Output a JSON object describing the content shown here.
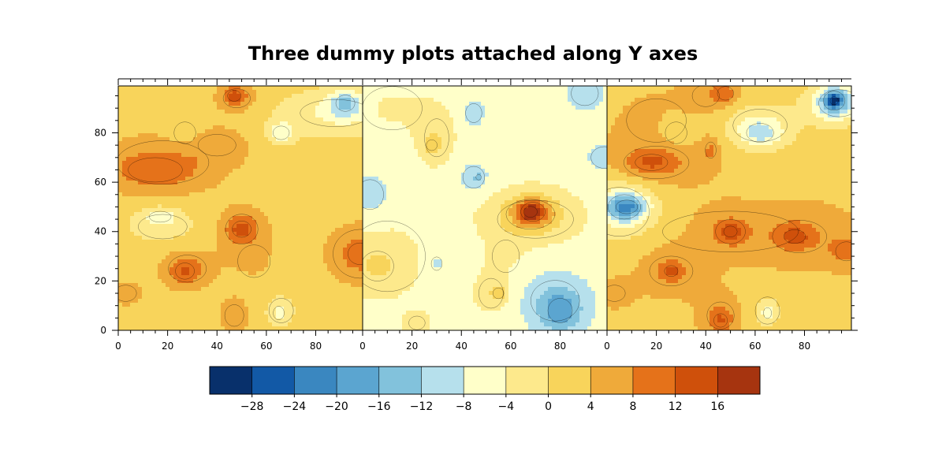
{
  "title": "Three dummy plots attached along Y axes",
  "chart_data": {
    "type": "heatmap",
    "title": "Three dummy plots attached along Y axes",
    "panels": [
      {
        "name": "panel-1",
        "xlim": [
          0,
          99
        ],
        "ylim": [
          0,
          99
        ],
        "x_ticks": [
          "0",
          "20",
          "40",
          "60",
          "80"
        ],
        "y_ticks": [
          "0",
          "20",
          "40",
          "60",
          "80"
        ],
        "background_value": 2,
        "blobs": [
          {
            "x": 18,
            "y": 68,
            "rx": 34,
            "ry": 16,
            "v": 8
          },
          {
            "x": 15,
            "y": 65,
            "rx": 20,
            "ry": 9,
            "v": 14
          },
          {
            "x": 40,
            "y": 75,
            "rx": 14,
            "ry": 8,
            "v": 9
          },
          {
            "x": 27,
            "y": 80,
            "rx": 8,
            "ry": 8,
            "v": -3
          },
          {
            "x": 48,
            "y": 94,
            "rx": 10,
            "ry": 7,
            "v": 11
          },
          {
            "x": 47,
            "y": 95,
            "rx": 5,
            "ry": 4,
            "v": 16
          },
          {
            "x": 88,
            "y": 88,
            "rx": 26,
            "ry": 10,
            "v": -10
          },
          {
            "x": 92,
            "y": 92,
            "rx": 7,
            "ry": 6,
            "v": -18
          },
          {
            "x": 66,
            "y": 80,
            "rx": 6,
            "ry": 5,
            "v": -13
          },
          {
            "x": 18,
            "y": 42,
            "rx": 18,
            "ry": 9,
            "v": -5
          },
          {
            "x": 17,
            "y": 46,
            "rx": 8,
            "ry": 4,
            "v": -10
          },
          {
            "x": 28,
            "y": 25,
            "rx": 14,
            "ry": 10,
            "v": 10
          },
          {
            "x": 27,
            "y": 24,
            "rx": 7,
            "ry": 6,
            "v": 14
          },
          {
            "x": 50,
            "y": 41,
            "rx": 12,
            "ry": 11,
            "v": 10
          },
          {
            "x": 50,
            "y": 41,
            "rx": 7,
            "ry": 6,
            "v": 15
          },
          {
            "x": 47,
            "y": 6,
            "rx": 7,
            "ry": 8,
            "v": 11
          },
          {
            "x": 66,
            "y": 8,
            "rx": 9,
            "ry": 9,
            "v": -3
          },
          {
            "x": 65,
            "y": 7,
            "rx": 4,
            "ry": 5,
            "v": -6
          },
          {
            "x": 98,
            "y": 31,
            "rx": 20,
            "ry": 18,
            "v": 8
          },
          {
            "x": 98,
            "y": 31,
            "rx": 9,
            "ry": 8,
            "v": 14
          },
          {
            "x": 3,
            "y": 15,
            "rx": 8,
            "ry": 6,
            "v": 10
          },
          {
            "x": 55,
            "y": 28,
            "rx": 12,
            "ry": 12,
            "v": 6
          }
        ]
      },
      {
        "name": "panel-2",
        "xlim": [
          0,
          99
        ],
        "ylim": [
          0,
          99
        ],
        "x_ticks": [
          "0",
          "20",
          "40",
          "60",
          "80"
        ],
        "y_ticks": [],
        "background_value": -6,
        "blobs": [
          {
            "x": 10,
            "y": 30,
            "rx": 28,
            "ry": 26,
            "v": -2
          },
          {
            "x": 12,
            "y": 90,
            "rx": 22,
            "ry": 16,
            "v": -2
          },
          {
            "x": 70,
            "y": 45,
            "rx": 28,
            "ry": 14,
            "v": -2
          },
          {
            "x": 58,
            "y": 30,
            "rx": 10,
            "ry": 12,
            "v": -2
          },
          {
            "x": 30,
            "y": 78,
            "rx": 9,
            "ry": 14,
            "v": 2
          },
          {
            "x": 28,
            "y": 75,
            "rx": 4,
            "ry": 4,
            "v": 4
          },
          {
            "x": 52,
            "y": 15,
            "rx": 9,
            "ry": 11,
            "v": 1
          },
          {
            "x": 55,
            "y": 15,
            "rx": 4,
            "ry": 4,
            "v": 4
          },
          {
            "x": 6,
            "y": 26,
            "rx": 12,
            "ry": 11,
            "v": 3
          },
          {
            "x": 22,
            "y": 3,
            "rx": 6,
            "ry": 5,
            "v": 3
          },
          {
            "x": 68,
            "y": 47,
            "rx": 18,
            "ry": 11,
            "v": 6
          },
          {
            "x": 69,
            "y": 48,
            "rx": 9,
            "ry": 7,
            "v": 11
          },
          {
            "x": 68,
            "y": 48,
            "rx": 5,
            "ry": 4,
            "v": 15
          },
          {
            "x": 78,
            "y": 12,
            "rx": 18,
            "ry": 15,
            "v": -14
          },
          {
            "x": 80,
            "y": 8,
            "rx": 9,
            "ry": 9,
            "v": -24
          },
          {
            "x": 3,
            "y": 55,
            "rx": 10,
            "ry": 11,
            "v": -14
          },
          {
            "x": 45,
            "y": 88,
            "rx": 6,
            "ry": 7,
            "v": -13
          },
          {
            "x": 45,
            "y": 62,
            "rx": 8,
            "ry": 8,
            "v": -13
          },
          {
            "x": 47,
            "y": 62,
            "rx": 2,
            "ry": 2,
            "v": -18
          },
          {
            "x": 90,
            "y": 96,
            "rx": 10,
            "ry": 9,
            "v": -13
          },
          {
            "x": 98,
            "y": 70,
            "rx": 10,
            "ry": 8,
            "v": -12
          },
          {
            "x": 30,
            "y": 27,
            "rx": 4,
            "ry": 5,
            "v": -13
          }
        ]
      },
      {
        "name": "panel-3",
        "xlim": [
          0,
          99
        ],
        "ylim": [
          0,
          99
        ],
        "x_ticks": [
          "0",
          "20",
          "40",
          "60",
          "80"
        ],
        "y_ticks": [],
        "background_value": 3,
        "blobs": [
          {
            "x": 20,
            "y": 85,
            "rx": 22,
            "ry": 16,
            "v": 6
          },
          {
            "x": 20,
            "y": 68,
            "rx": 24,
            "ry": 12,
            "v": 10
          },
          {
            "x": 18,
            "y": 68,
            "rx": 12,
            "ry": 6,
            "v": 15
          },
          {
            "x": 40,
            "y": 95,
            "rx": 10,
            "ry": 8,
            "v": 10
          },
          {
            "x": 48,
            "y": 96,
            "rx": 6,
            "ry": 5,
            "v": 15
          },
          {
            "x": 42,
            "y": 73,
            "rx": 4,
            "ry": 6,
            "v": 12
          },
          {
            "x": 28,
            "y": 80,
            "rx": 8,
            "ry": 8,
            "v": -3
          },
          {
            "x": 62,
            "y": 83,
            "rx": 20,
            "ry": 12,
            "v": -6
          },
          {
            "x": 62,
            "y": 80,
            "rx": 10,
            "ry": 7,
            "v": -13
          },
          {
            "x": 94,
            "y": 92,
            "rx": 15,
            "ry": 10,
            "v": -12
          },
          {
            "x": 92,
            "y": 93,
            "rx": 8,
            "ry": 7,
            "v": -20
          },
          {
            "x": 92,
            "y": 93,
            "rx": 3,
            "ry": 3,
            "v": -27
          },
          {
            "x": 5,
            "y": 48,
            "rx": 22,
            "ry": 18,
            "v": -6
          },
          {
            "x": 7,
            "y": 50,
            "rx": 12,
            "ry": 9,
            "v": -14
          },
          {
            "x": 8,
            "y": 50,
            "rx": 8,
            "ry": 5,
            "v": -19
          },
          {
            "x": 50,
            "y": 40,
            "rx": 50,
            "ry": 15,
            "v": 6
          },
          {
            "x": 50,
            "y": 40,
            "rx": 11,
            "ry": 9,
            "v": 11
          },
          {
            "x": 50,
            "y": 40,
            "rx": 5,
            "ry": 4,
            "v": 15
          },
          {
            "x": 78,
            "y": 38,
            "rx": 20,
            "ry": 12,
            "v": 10
          },
          {
            "x": 76,
            "y": 38,
            "rx": 8,
            "ry": 5,
            "v": 15
          },
          {
            "x": 97,
            "y": 32,
            "rx": 8,
            "ry": 7,
            "v": 14
          },
          {
            "x": 26,
            "y": 24,
            "rx": 16,
            "ry": 11,
            "v": 10
          },
          {
            "x": 26,
            "y": 24,
            "rx": 5,
            "ry": 4,
            "v": 16
          },
          {
            "x": 46,
            "y": 6,
            "rx": 10,
            "ry": 10,
            "v": 10
          },
          {
            "x": 46,
            "y": 4,
            "rx": 5,
            "ry": 5,
            "v": 14
          },
          {
            "x": 3,
            "y": 15,
            "rx": 8,
            "ry": 6,
            "v": 10
          },
          {
            "x": 65,
            "y": 8,
            "rx": 9,
            "ry": 10,
            "v": -4
          },
          {
            "x": 65,
            "y": 7,
            "rx": 3,
            "ry": 4,
            "v": -9
          }
        ]
      }
    ],
    "colorbar": {
      "levels": [
        -32,
        -28,
        -24,
        -20,
        -16,
        -12,
        -8,
        -4,
        0,
        4,
        8,
        12,
        16,
        20
      ],
      "tick_labels": [
        "−28",
        "−24",
        "−20",
        "−16",
        "−12",
        "−8",
        "−4",
        "0",
        "4",
        "8",
        "12",
        "16"
      ],
      "colors": [
        "#08306b",
        "#1259a6",
        "#3a87c0",
        "#5ba5d0",
        "#82c2dc",
        "#b6e0ec",
        "#ffffc9",
        "#fde98c",
        "#f8d45b",
        "#efaa3a",
        "#e5721a",
        "#cf500b",
        "#a6340f"
      ]
    }
  }
}
